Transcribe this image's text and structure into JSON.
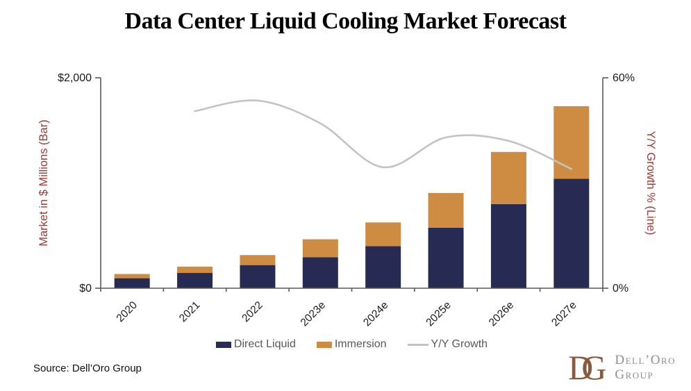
{
  "title": "Data Center Liquid Cooling Market Forecast",
  "source": "Source: Dell’Oro Group",
  "logo": {
    "monogram_d": "D",
    "monogram_g": "G",
    "line1": "Dell’Oro",
    "line2": "Group"
  },
  "colors": {
    "direct_liquid": "#272B54",
    "immersion": "#CE8B42",
    "growth_line": "#C3C3C3",
    "axis": "#595959",
    "axis_title": "#9C3A33",
    "tick_text": "#1A1A1A",
    "legend_text": "#595959",
    "logo_brown": "#8A5A3F",
    "logo_gray": "#8E8E8E"
  },
  "chart_data": {
    "type": "bar",
    "subtype": "stacked-bar-with-line",
    "title": "Data Center Liquid Cooling Market Forecast",
    "categories": [
      "2020",
      "2021",
      "2022",
      "2023e",
      "2024e",
      "2025e",
      "2026e",
      "2027e"
    ],
    "series": [
      {
        "name": "Direct Liquid",
        "type": "bar",
        "axis": "left",
        "color": "#272B54",
        "values": [
          95,
          145,
          220,
          295,
          400,
          575,
          800,
          1040
        ]
      },
      {
        "name": "Immersion",
        "type": "bar",
        "axis": "left",
        "color": "#CE8B42",
        "values": [
          40,
          60,
          95,
          170,
          225,
          330,
          495,
          690
        ]
      },
      {
        "name": "Y/Y Growth",
        "type": "line",
        "axis": "right",
        "color": "#C3C3C3",
        "values": [
          null,
          50.5,
          53.5,
          47,
          34.5,
          43,
          42,
          34
        ]
      }
    ],
    "stacked_totals": [
      135,
      205,
      315,
      465,
      625,
      905,
      1295,
      1730
    ],
    "left_axis": {
      "title": "Market in $ Millions (Bar)",
      "min": 0,
      "max": 2000,
      "min_label": "$0",
      "max_label": "$2,000"
    },
    "right_axis": {
      "title": "Y/Y Growth % (Line)",
      "min": 0,
      "max": 60,
      "min_label": "0%",
      "max_label": "60%"
    },
    "legend": [
      "Direct Liquid",
      "Immersion",
      "Y/Y Growth"
    ],
    "legend_position": "bottom",
    "grid": false
  }
}
